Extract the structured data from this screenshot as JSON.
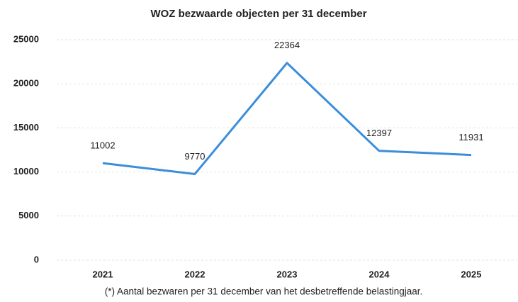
{
  "chart_data": {
    "type": "line",
    "title": "WOZ bezwaarde objecten per 31 december",
    "categories": [
      "2021",
      "2022",
      "2023",
      "2024",
      "2025"
    ],
    "values": [
      11002,
      9770,
      22364,
      12397,
      11931
    ],
    "color": "#3a8edb",
    "ylim": [
      0,
      25000
    ],
    "yticks": [
      0,
      5000,
      10000,
      15000,
      20000,
      25000
    ],
    "grid": true,
    "annotation": "(*) Aantal bezwaren per 31 december van het desbetreffende belastingjaar."
  }
}
